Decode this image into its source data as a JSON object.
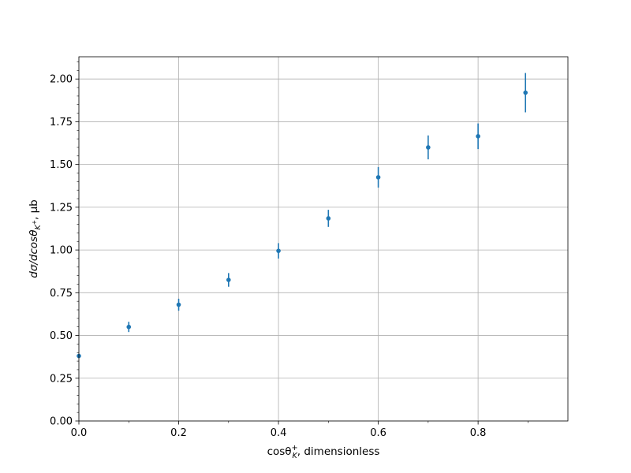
{
  "chart_data": {
    "type": "scatter",
    "xlabel": "cosθ",
    "xlabel_sub": "K",
    "xlabel_sup": "+",
    "xlabel_suffix": ", dimensionless",
    "ylabel": "dσ/dcosθ",
    "ylabel_sub": "K",
    "ylabel_subsup": "+",
    "ylabel_suffix": ", μb",
    "xlim": [
      0.0,
      0.98
    ],
    "ylim": [
      0.0,
      2.13
    ],
    "xticks": [
      0.0,
      0.2,
      0.4,
      0.6,
      0.8
    ],
    "xtick_labels": [
      "0.0",
      "0.2",
      "0.4",
      "0.6",
      "0.8"
    ],
    "yticks": [
      0.0,
      0.25,
      0.5,
      0.75,
      1.0,
      1.25,
      1.5,
      1.75,
      2.0
    ],
    "ytick_labels": [
      "0.00",
      "0.25",
      "0.50",
      "0.75",
      "1.00",
      "1.25",
      "1.50",
      "1.75",
      "2.00"
    ],
    "grid": true,
    "marker_color": "#1f77b4",
    "series": [
      {
        "x": [
          0.0,
          0.1,
          0.2,
          0.3,
          0.4,
          0.5,
          0.6,
          0.7,
          0.8,
          0.895
        ],
        "y": [
          0.38,
          0.55,
          0.68,
          0.825,
          0.995,
          1.185,
          1.425,
          1.6,
          1.665,
          1.92
        ],
        "yerr": [
          0.0,
          0.03,
          0.035,
          0.04,
          0.045,
          0.05,
          0.06,
          0.07,
          0.075,
          0.115
        ]
      }
    ]
  }
}
